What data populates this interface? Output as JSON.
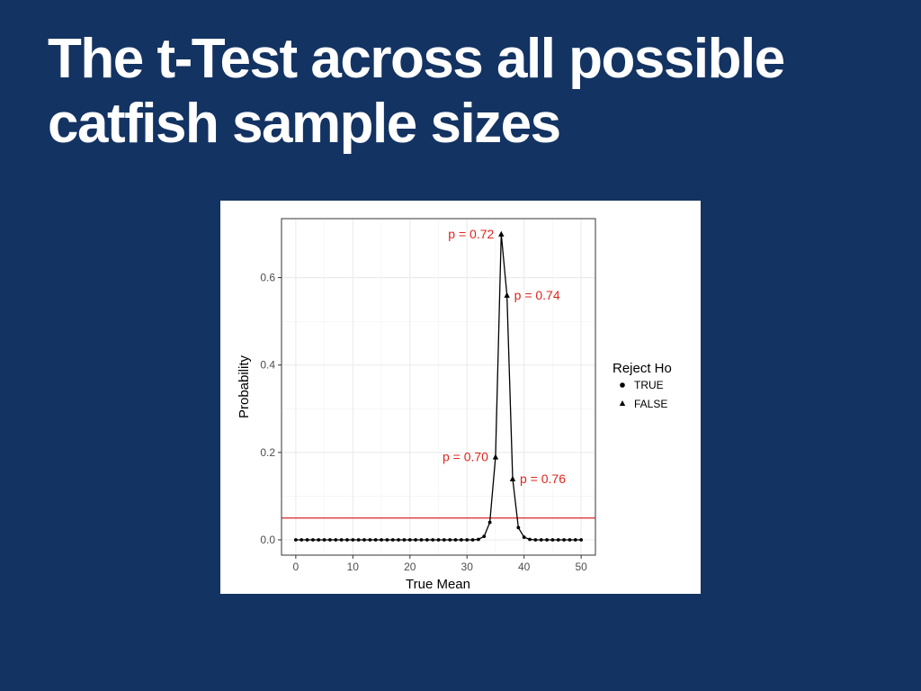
{
  "slide": {
    "title": "The t-Test across all possible catfish sample sizes"
  },
  "colors": {
    "background": "#133362",
    "title_text": "#ffffff",
    "series_line": "#000000",
    "threshold_line": "#d62728",
    "annotation_text": "#e0251b"
  },
  "chart_data": {
    "type": "line",
    "xlabel": "True Mean",
    "ylabel": "Probability",
    "xlim": [
      -2.5,
      52.5
    ],
    "ylim": [
      -0.035,
      0.735
    ],
    "x_ticks": [
      0,
      10,
      20,
      30,
      40,
      50
    ],
    "y_ticks": [
      0.0,
      0.2,
      0.4,
      0.6
    ],
    "y_tick_labels": [
      "0.0",
      "0.2",
      "0.4",
      "0.6"
    ],
    "grid": true,
    "threshold": 0.05,
    "legend": {
      "title": "Reject Ho",
      "placement": "right",
      "entries": [
        {
          "label": "TRUE",
          "marker": "circle"
        },
        {
          "label": "FALSE",
          "marker": "triangle"
        }
      ]
    },
    "points": [
      {
        "x": 0,
        "y": 0.0,
        "reject": true
      },
      {
        "x": 1,
        "y": 0.0,
        "reject": true
      },
      {
        "x": 2,
        "y": 0.0,
        "reject": true
      },
      {
        "x": 3,
        "y": 0.0,
        "reject": true
      },
      {
        "x": 4,
        "y": 0.0,
        "reject": true
      },
      {
        "x": 5,
        "y": 0.0,
        "reject": true
      },
      {
        "x": 6,
        "y": 0.0,
        "reject": true
      },
      {
        "x": 7,
        "y": 0.0,
        "reject": true
      },
      {
        "x": 8,
        "y": 0.0,
        "reject": true
      },
      {
        "x": 9,
        "y": 0.0,
        "reject": true
      },
      {
        "x": 10,
        "y": 0.0,
        "reject": true
      },
      {
        "x": 11,
        "y": 0.0,
        "reject": true
      },
      {
        "x": 12,
        "y": 0.0,
        "reject": true
      },
      {
        "x": 13,
        "y": 0.0,
        "reject": true
      },
      {
        "x": 14,
        "y": 0.0,
        "reject": true
      },
      {
        "x": 15,
        "y": 0.0,
        "reject": true
      },
      {
        "x": 16,
        "y": 0.0,
        "reject": true
      },
      {
        "x": 17,
        "y": 0.0,
        "reject": true
      },
      {
        "x": 18,
        "y": 0.0,
        "reject": true
      },
      {
        "x": 19,
        "y": 0.0,
        "reject": true
      },
      {
        "x": 20,
        "y": 0.0,
        "reject": true
      },
      {
        "x": 21,
        "y": 0.0,
        "reject": true
      },
      {
        "x": 22,
        "y": 0.0,
        "reject": true
      },
      {
        "x": 23,
        "y": 0.0,
        "reject": true
      },
      {
        "x": 24,
        "y": 0.0,
        "reject": true
      },
      {
        "x": 25,
        "y": 0.0,
        "reject": true
      },
      {
        "x": 26,
        "y": 0.0,
        "reject": true
      },
      {
        "x": 27,
        "y": 0.0,
        "reject": true
      },
      {
        "x": 28,
        "y": 0.0,
        "reject": true
      },
      {
        "x": 29,
        "y": 0.0,
        "reject": true
      },
      {
        "x": 30,
        "y": 0.0,
        "reject": true
      },
      {
        "x": 31,
        "y": 0.0,
        "reject": true
      },
      {
        "x": 32,
        "y": 0.001,
        "reject": true
      },
      {
        "x": 33,
        "y": 0.008,
        "reject": true
      },
      {
        "x": 34,
        "y": 0.04,
        "reject": true
      },
      {
        "x": 35,
        "y": 0.19,
        "reject": false
      },
      {
        "x": 36,
        "y": 0.7,
        "reject": false
      },
      {
        "x": 37,
        "y": 0.56,
        "reject": false
      },
      {
        "x": 38,
        "y": 0.14,
        "reject": false
      },
      {
        "x": 39,
        "y": 0.028,
        "reject": true
      },
      {
        "x": 40,
        "y": 0.006,
        "reject": true
      },
      {
        "x": 41,
        "y": 0.001,
        "reject": true
      },
      {
        "x": 42,
        "y": 0.0,
        "reject": true
      },
      {
        "x": 43,
        "y": 0.0,
        "reject": true
      },
      {
        "x": 44,
        "y": 0.0,
        "reject": true
      },
      {
        "x": 45,
        "y": 0.0,
        "reject": true
      },
      {
        "x": 46,
        "y": 0.0,
        "reject": true
      },
      {
        "x": 47,
        "y": 0.0,
        "reject": true
      },
      {
        "x": 48,
        "y": 0.0,
        "reject": true
      },
      {
        "x": 49,
        "y": 0.0,
        "reject": true
      },
      {
        "x": 50,
        "y": 0.0,
        "reject": true
      }
    ],
    "annotations": [
      {
        "text": "p = 0.72",
        "x": 36,
        "y": 0.7,
        "side": "left"
      },
      {
        "text": "p = 0.74",
        "x": 37,
        "y": 0.56,
        "side": "right"
      },
      {
        "text": "p = 0.70",
        "x": 35,
        "y": 0.19,
        "side": "left"
      },
      {
        "text": "p = 0.76",
        "x": 38,
        "y": 0.14,
        "side": "right"
      }
    ]
  }
}
